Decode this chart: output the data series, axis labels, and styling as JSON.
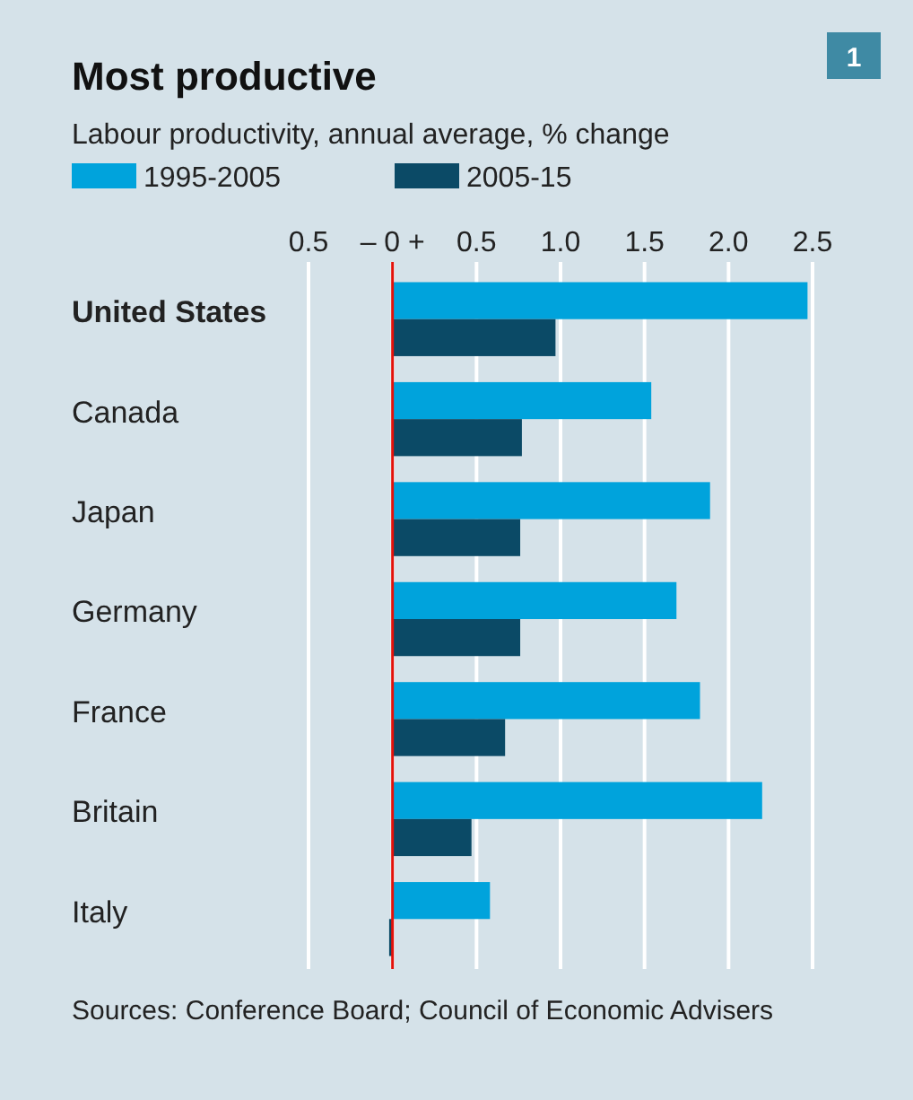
{
  "chart_data": {
    "type": "bar",
    "orientation": "horizontal",
    "title": "Most productive",
    "subtitle": "Labour productivity, annual average, % change",
    "categories": [
      "United States",
      "Canada",
      "Japan",
      "Germany",
      "France",
      "Britain",
      "Italy"
    ],
    "series": [
      {
        "name": "1995-2005",
        "color": "#00a3dc",
        "values": [
          2.47,
          1.54,
          1.89,
          1.69,
          1.83,
          2.2,
          0.58
        ]
      },
      {
        "name": "2005-15",
        "color": "#0b4a66",
        "values": [
          0.97,
          0.77,
          0.76,
          0.76,
          0.67,
          0.47,
          -0.02
        ]
      }
    ],
    "xlim": [
      -0.5,
      2.5
    ],
    "xticks": [
      {
        "value": -0.5,
        "label": "0.5"
      },
      {
        "value": 0,
        "label": "– 0 +"
      },
      0.5,
      {
        "value": 1,
        "label": "1.0"
      },
      1.5,
      {
        "value": 2,
        "label": "2.0"
      },
      2.5
    ],
    "grid": "x",
    "legend": "top left",
    "ref_lines": [
      {
        "axis": "x",
        "value": 0,
        "color": "#e3120b"
      }
    ],
    "annotations": [
      "Sources: Conference Board; Council of Economic Advisers",
      "1"
    ]
  }
}
